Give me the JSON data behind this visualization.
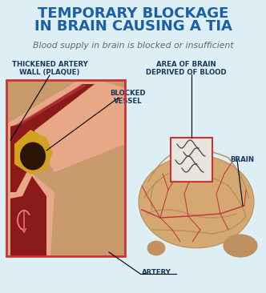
{
  "bg_color": "#ddeef5",
  "title_line1": "TEMPORARY BLOCKAGE",
  "title_line2": "IN BRAIN CAUSING A TIA",
  "title_color": "#1a5fa8",
  "subtitle": "Blood supply in brain is blocked or insufficient",
  "subtitle_color": "#666666",
  "label_thickened": "THICKENED ARTERY\nWALL (PLAQUE)",
  "label_blocked": "BLOCKED\nVESSEL",
  "label_area": "AREA OF BRAIN\nDEPRIVED OF BLOOD",
  "label_brain": "BRAIN",
  "label_artery": "ARTERY",
  "label_color": "#1a3a5c",
  "box_red": "#cc3333",
  "artery_bg": "#c8996a",
  "artery_outer": "#e8a888",
  "artery_dark_red": "#8b1a1a",
  "artery_mid_red": "#b02020",
  "artery_light_red": "#cc3333",
  "plaque_yellow": "#d4a020",
  "plaque_dark": "#2a1505",
  "brain_tan": "#d4a870",
  "brain_fold": "#b8905a",
  "brain_dark": "#c49060",
  "brain_vessel": "#c03040",
  "cerebellum": "#c09060",
  "deprived_fill": "#e8e0d0",
  "squiggle_color": "#555555"
}
